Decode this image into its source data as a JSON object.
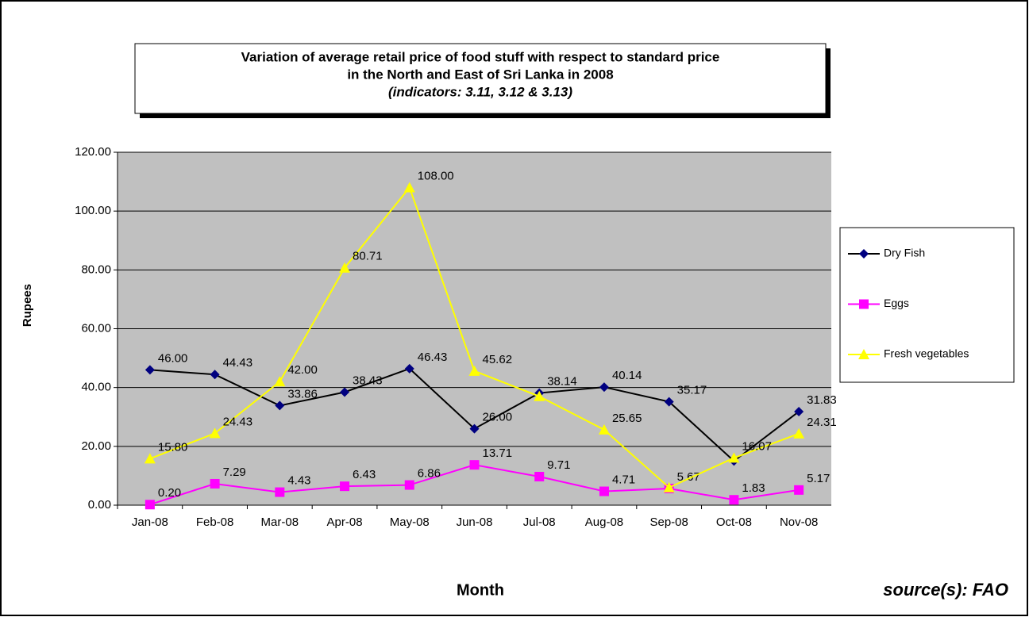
{
  "chart_data": {
    "type": "line",
    "title": [
      "Variation of average retail price of food stuff with respect to standard price",
      "in the North and East of Sri Lanka in 2008"
    ],
    "subtitle": "(indicators: 3.11, 3.12 & 3.13)",
    "x_label": "Month",
    "y_label": "Rupees",
    "source": "source(s): FAO",
    "categories": [
      "Jan-08",
      "Feb-08",
      "Mar-08",
      "Apr-08",
      "May-08",
      "Jun-08",
      "Jul-08",
      "Aug-08",
      "Sep-08",
      "Oct-08",
      "Nov-08"
    ],
    "ylim": [
      0,
      120
    ],
    "yticks": [
      {
        "value": 0,
        "label": "0.00"
      },
      {
        "value": 20,
        "label": "20.00"
      },
      {
        "value": 40,
        "label": "40.00"
      },
      {
        "value": 60,
        "label": "60.00"
      },
      {
        "value": 80,
        "label": "80.00"
      },
      {
        "value": 100,
        "label": "100.00"
      },
      {
        "value": 120,
        "label": "120.00"
      }
    ],
    "grid": true,
    "legend": "right",
    "series": [
      {
        "name": "Dry Fish",
        "color": "#000000",
        "marker": "diamond",
        "marker_color": "#000080",
        "values": [
          46.0,
          44.43,
          33.86,
          38.43,
          46.43,
          26.0,
          38.14,
          40.14,
          35.17,
          15,
          31.83
        ],
        "value_labels": [
          "46.00",
          "44.43",
          "33.86",
          "38.43",
          "46.43",
          "26.00",
          "38.14",
          "40.14",
          "35.17",
          null,
          "31.83"
        ]
      },
      {
        "name": "Eggs",
        "color": "#ff00ff",
        "marker": "square",
        "marker_color": "#ff00ff",
        "values": [
          0.2,
          7.29,
          4.43,
          6.43,
          6.86,
          13.71,
          9.71,
          4.71,
          5.67,
          1.83,
          5.17
        ],
        "value_labels": [
          "0.20",
          "7.29",
          "4.43",
          "6.43",
          "6.86",
          "13.71",
          "9.71",
          "4.71",
          "5.67",
          "1.83",
          "5.17"
        ]
      },
      {
        "name": "Fresh vegetables",
        "color": "#ffff00",
        "marker": "triangle",
        "marker_color": "#ffff00",
        "values": [
          15.8,
          24.43,
          42.0,
          80.71,
          108.0,
          45.62,
          37,
          25.65,
          6,
          16.07,
          24.31
        ],
        "value_labels": [
          "15.80",
          "24.43",
          "42.00",
          "80.71",
          "108.00",
          "45.62",
          null,
          "25.65",
          null,
          "16.07",
          "24.31"
        ]
      }
    ]
  }
}
